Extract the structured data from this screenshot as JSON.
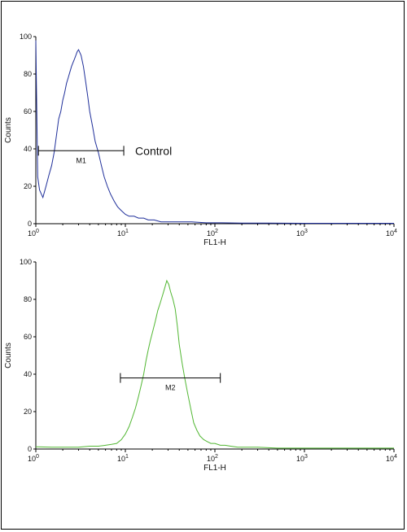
{
  "chart_data": [
    {
      "type": "histogram",
      "color": "#1f2f9a",
      "xlabel": "FL1-H",
      "ylabel": "Counts",
      "xscale": "log",
      "xlim": [
        1,
        10000
      ],
      "ylim": [
        0,
        100
      ],
      "yticks": [
        0,
        20,
        40,
        60,
        80,
        100
      ],
      "xticks": [
        {
          "value": 1,
          "base": "10",
          "exp": "0"
        },
        {
          "value": 10,
          "base": "10",
          "exp": "1"
        },
        {
          "value": 100,
          "base": "10",
          "exp": "2"
        },
        {
          "value": 1000,
          "base": "10",
          "exp": "3"
        },
        {
          "value": 10000,
          "base": "10",
          "exp": "4"
        }
      ],
      "gate": {
        "label": "M1",
        "x_start": 1.07,
        "x_end": 9.6,
        "y": 39
      },
      "annotation": "Control",
      "x": [
        1.0,
        1.05,
        1.1,
        1.2,
        1.3,
        1.4,
        1.5,
        1.6,
        1.7,
        1.8,
        1.9,
        2.0,
        2.1,
        2.2,
        2.3,
        2.4,
        2.5,
        2.6,
        2.7,
        2.8,
        2.9,
        3.0,
        3.2,
        3.4,
        3.6,
        3.8,
        4.0,
        4.3,
        4.6,
        5.0,
        5.4,
        5.8,
        6.3,
        6.8,
        7.5,
        8.2,
        9.0,
        10.0,
        11.0,
        12.5,
        14.0,
        16.0,
        18.0,
        21.0,
        25.0,
        30.0,
        40.0,
        55.0,
        80.0,
        120.0,
        200.0,
        400.0,
        1000.0,
        10000.0
      ],
      "y": [
        98,
        25,
        18,
        14,
        20,
        26,
        31,
        38,
        47,
        56,
        60,
        66,
        70,
        75,
        78,
        81,
        84,
        86,
        88,
        90,
        92,
        93,
        90,
        84,
        76,
        68,
        60,
        52,
        44,
        38,
        31,
        25,
        20,
        16,
        12,
        9,
        7,
        5,
        4,
        4,
        3,
        3,
        2,
        2,
        1,
        1,
        1,
        1,
        0.5,
        0.5,
        0.3,
        0.3,
        0.2,
        0.2
      ]
    },
    {
      "type": "histogram",
      "color": "#52b733",
      "xlabel": "FL1-H",
      "ylabel": "Counts",
      "xscale": "log",
      "xlim": [
        1,
        10000
      ],
      "ylim": [
        0,
        100
      ],
      "yticks": [
        0,
        20,
        40,
        60,
        80,
        100
      ],
      "xticks": [
        {
          "value": 1,
          "base": "10",
          "exp": "0"
        },
        {
          "value": 10,
          "base": "10",
          "exp": "1"
        },
        {
          "value": 100,
          "base": "10",
          "exp": "2"
        },
        {
          "value": 1000,
          "base": "10",
          "exp": "3"
        },
        {
          "value": 10000,
          "base": "10",
          "exp": "4"
        }
      ],
      "gate": {
        "label": "M2",
        "x_start": 8.8,
        "x_end": 115,
        "y": 38
      },
      "annotation": "",
      "x": [
        1.0,
        1.5,
        2.0,
        3.0,
        4.0,
        5.0,
        6.0,
        7.0,
        8.0,
        9.0,
        10.0,
        11.0,
        12.0,
        13.0,
        14.0,
        15.0,
        16.0,
        17.0,
        18.0,
        19.0,
        20.0,
        21.5,
        23.0,
        24.5,
        26.0,
        27.5,
        29.0,
        30.5,
        32.0,
        34.0,
        36.0,
        38.0,
        40.0,
        43.0,
        46.0,
        50.0,
        54.0,
        58.0,
        63.0,
        68.0,
        75.0,
        82.0,
        90.0,
        100.0,
        115.0,
        130.0,
        150.0,
        180.0,
        220.0,
        300.0,
        500.0,
        1000.0,
        3000.0,
        10000.0
      ],
      "y": [
        1.2,
        1,
        1,
        1,
        1.5,
        1.5,
        2,
        2.5,
        3,
        5,
        8,
        12,
        17,
        22,
        28,
        34,
        40,
        47,
        53,
        58,
        62,
        68,
        74,
        78,
        82,
        86,
        90,
        88,
        84,
        80,
        75,
        66,
        56,
        46,
        38,
        29,
        21,
        14,
        10,
        7,
        5,
        4,
        3,
        3,
        2,
        2,
        1.5,
        1,
        1,
        1,
        0.5,
        0.5,
        0.5,
        0.5
      ]
    }
  ]
}
